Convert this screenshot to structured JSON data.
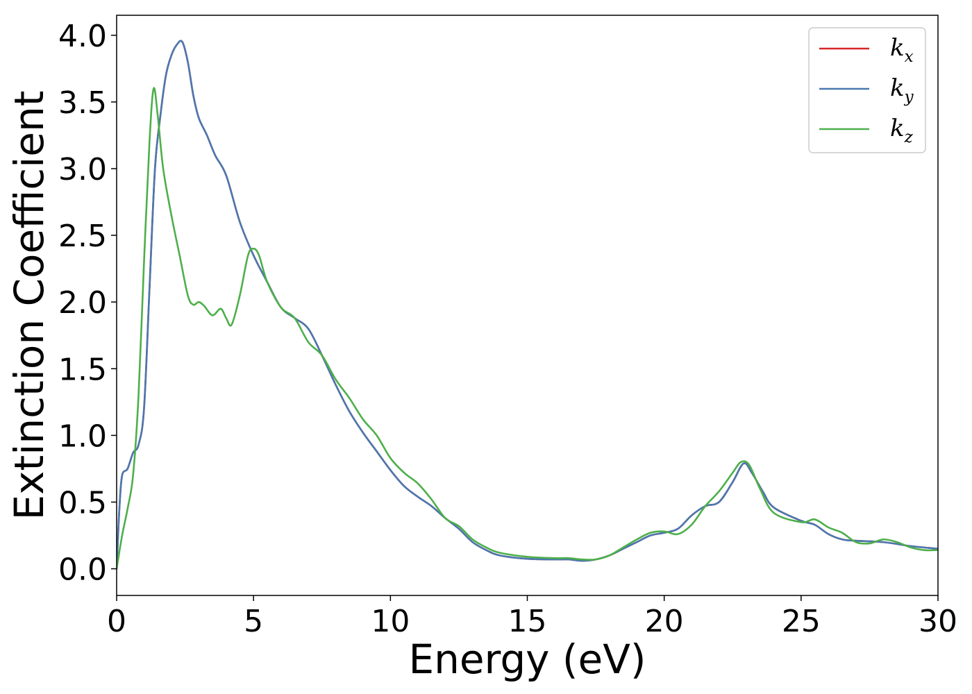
{
  "chart_data": {
    "type": "line",
    "title": "",
    "xlabel": "Energy (eV)",
    "ylabel": "Extinction Coefficient",
    "xlim": [
      0,
      30
    ],
    "ylim": [
      -0.2,
      4.15
    ],
    "xticks": [
      0,
      5,
      10,
      15,
      20,
      25,
      30
    ],
    "xtick_labels": [
      "0",
      "5",
      "10",
      "15",
      "20",
      "25",
      "30"
    ],
    "yticks": [
      0.0,
      0.5,
      1.0,
      1.5,
      2.0,
      2.5,
      3.0,
      3.5,
      4.0
    ],
    "ytick_labels": [
      "0.0",
      "0.5",
      "1.0",
      "1.5",
      "2.0",
      "2.5",
      "3.0",
      "3.5",
      "4.0"
    ],
    "grid": false,
    "legend": {
      "position": "top-right",
      "entries": [
        {
          "base": "k",
          "sub": "x",
          "color": "#d62728"
        },
        {
          "base": "k",
          "sub": "y",
          "color": "#4a78b0"
        },
        {
          "base": "k",
          "sub": "z",
          "color": "#4daf4a"
        }
      ]
    },
    "series": [
      {
        "name": "k_x",
        "color": "#d62728",
        "x": [
          0,
          0.1,
          0.2,
          0.4,
          0.6,
          0.8,
          1.0,
          1.2,
          1.4,
          1.6,
          1.8,
          2.0,
          2.2,
          2.4,
          2.6,
          2.8,
          3.0,
          3.3,
          3.6,
          4.0,
          4.5,
          5.0,
          5.5,
          6.0,
          6.5,
          7.0,
          7.5,
          8.0,
          8.5,
          9.0,
          9.5,
          10.0,
          10.5,
          11.0,
          11.5,
          12.0,
          12.5,
          13.0,
          13.5,
          14.0,
          15.0,
          16.0,
          16.5,
          17.0,
          17.5,
          18.0,
          18.5,
          19.0,
          19.5,
          20.0,
          20.5,
          21.0,
          21.5,
          22.0,
          22.5,
          22.9,
          23.2,
          23.6,
          24.0,
          25.0,
          25.5,
          26.0,
          26.5,
          27.0,
          28.0,
          29.0,
          30.0
        ],
        "y": [
          0.0,
          0.45,
          0.7,
          0.75,
          0.87,
          0.93,
          1.2,
          2.1,
          3.0,
          3.4,
          3.7,
          3.85,
          3.93,
          3.95,
          3.8,
          3.55,
          3.38,
          3.25,
          3.1,
          2.95,
          2.6,
          2.35,
          2.15,
          1.96,
          1.88,
          1.8,
          1.6,
          1.38,
          1.18,
          1.02,
          0.88,
          0.74,
          0.62,
          0.54,
          0.47,
          0.38,
          0.3,
          0.2,
          0.14,
          0.1,
          0.075,
          0.07,
          0.07,
          0.06,
          0.07,
          0.1,
          0.15,
          0.2,
          0.25,
          0.27,
          0.3,
          0.4,
          0.47,
          0.5,
          0.65,
          0.79,
          0.72,
          0.58,
          0.46,
          0.36,
          0.33,
          0.26,
          0.22,
          0.21,
          0.2,
          0.17,
          0.15
        ]
      },
      {
        "name": "k_y",
        "color": "#4a78b0",
        "x": [
          0,
          0.1,
          0.2,
          0.4,
          0.6,
          0.8,
          1.0,
          1.2,
          1.4,
          1.6,
          1.8,
          2.0,
          2.2,
          2.4,
          2.6,
          2.8,
          3.0,
          3.3,
          3.6,
          4.0,
          4.5,
          5.0,
          5.5,
          6.0,
          6.5,
          7.0,
          7.5,
          8.0,
          8.5,
          9.0,
          9.5,
          10.0,
          10.5,
          11.0,
          11.5,
          12.0,
          12.5,
          13.0,
          13.5,
          14.0,
          15.0,
          16.0,
          16.5,
          17.0,
          17.5,
          18.0,
          18.5,
          19.0,
          19.5,
          20.0,
          20.5,
          21.0,
          21.5,
          22.0,
          22.5,
          22.9,
          23.2,
          23.6,
          24.0,
          25.0,
          25.5,
          26.0,
          26.5,
          27.0,
          28.0,
          29.0,
          30.0
        ],
        "y": [
          0.0,
          0.45,
          0.7,
          0.75,
          0.87,
          0.93,
          1.2,
          2.1,
          3.0,
          3.4,
          3.7,
          3.85,
          3.93,
          3.95,
          3.8,
          3.55,
          3.38,
          3.25,
          3.1,
          2.95,
          2.6,
          2.35,
          2.15,
          1.96,
          1.88,
          1.8,
          1.6,
          1.38,
          1.18,
          1.02,
          0.88,
          0.74,
          0.62,
          0.54,
          0.47,
          0.38,
          0.3,
          0.2,
          0.14,
          0.1,
          0.075,
          0.07,
          0.07,
          0.06,
          0.07,
          0.1,
          0.15,
          0.2,
          0.25,
          0.27,
          0.3,
          0.4,
          0.47,
          0.5,
          0.65,
          0.79,
          0.72,
          0.58,
          0.46,
          0.36,
          0.33,
          0.26,
          0.22,
          0.21,
          0.2,
          0.17,
          0.15
        ]
      },
      {
        "name": "k_z",
        "color": "#4daf4a",
        "x": [
          0,
          0.2,
          0.4,
          0.6,
          0.8,
          1.0,
          1.2,
          1.35,
          1.5,
          1.7,
          2.0,
          2.3,
          2.6,
          2.8,
          3.0,
          3.2,
          3.5,
          3.8,
          4.0,
          4.2,
          4.5,
          4.8,
          5.0,
          5.2,
          5.5,
          6.0,
          6.5,
          7.0,
          7.5,
          8.0,
          8.5,
          9.0,
          9.5,
          10.0,
          10.5,
          11.0,
          11.5,
          12.0,
          12.5,
          13.0,
          13.5,
          14.0,
          15.0,
          16.0,
          16.5,
          17.0,
          17.5,
          18.0,
          18.5,
          19.0,
          19.5,
          20.0,
          20.5,
          21.0,
          21.5,
          22.0,
          22.5,
          22.8,
          23.1,
          23.5,
          24.0,
          25.0,
          25.5,
          26.0,
          26.5,
          27.0,
          27.5,
          28.0,
          28.5,
          29.0,
          29.5,
          30.0
        ],
        "y": [
          0.0,
          0.25,
          0.45,
          0.7,
          1.3,
          2.3,
          3.2,
          3.6,
          3.4,
          3.0,
          2.65,
          2.35,
          2.05,
          1.98,
          2.0,
          1.97,
          1.9,
          1.95,
          1.88,
          1.83,
          2.05,
          2.35,
          2.4,
          2.35,
          2.15,
          1.96,
          1.88,
          1.7,
          1.6,
          1.42,
          1.28,
          1.12,
          1.0,
          0.83,
          0.72,
          0.64,
          0.52,
          0.38,
          0.32,
          0.22,
          0.16,
          0.12,
          0.09,
          0.08,
          0.08,
          0.07,
          0.07,
          0.1,
          0.16,
          0.22,
          0.27,
          0.28,
          0.26,
          0.33,
          0.47,
          0.58,
          0.72,
          0.8,
          0.78,
          0.6,
          0.42,
          0.35,
          0.37,
          0.31,
          0.27,
          0.2,
          0.19,
          0.22,
          0.2,
          0.16,
          0.14,
          0.14
        ]
      }
    ]
  }
}
